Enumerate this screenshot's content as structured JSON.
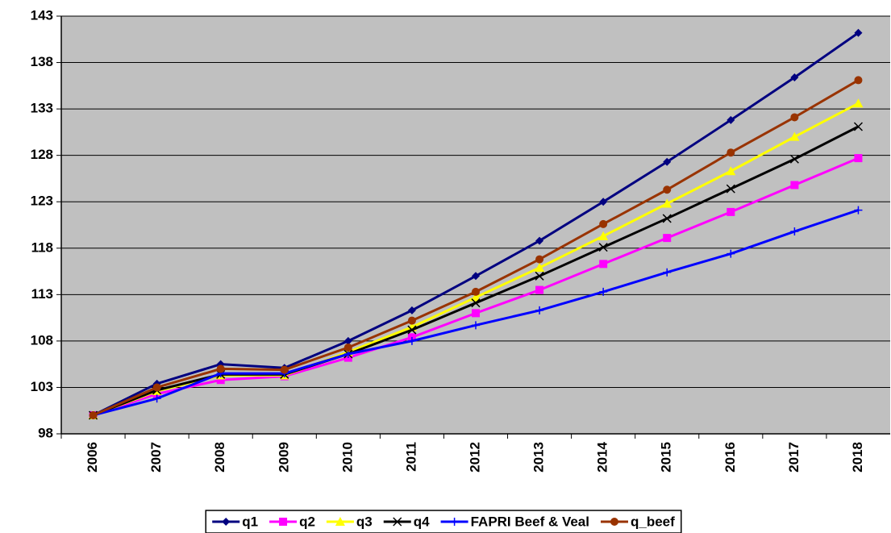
{
  "chart_data": {
    "type": "line",
    "categories": [
      "2006",
      "2007",
      "2008",
      "2009",
      "2010",
      "2011",
      "2012",
      "2013",
      "2014",
      "2015",
      "2016",
      "2017",
      "2018"
    ],
    "series": [
      {
        "name": "q1",
        "color": "#000080",
        "marker": "diamond",
        "values": [
          100,
          103.4,
          105.5,
          105.1,
          108,
          111.3,
          115,
          118.8,
          123,
          127.3,
          131.8,
          136.4,
          141.2
        ]
      },
      {
        "name": "q2",
        "color": "#ff00ff",
        "marker": "square",
        "values": [
          100,
          102.3,
          103.8,
          104.2,
          106.2,
          108.4,
          111,
          113.5,
          116.3,
          119.1,
          121.9,
          124.8,
          127.7
        ]
      },
      {
        "name": "q3",
        "color": "#ffff00",
        "marker": "triangle",
        "values": [
          100,
          102.6,
          104.3,
          104.3,
          106.8,
          109.5,
          112.7,
          115.9,
          119.3,
          122.8,
          126.3,
          130,
          133.6
        ]
      },
      {
        "name": "q4",
        "color": "#000000",
        "marker": "x",
        "values": [
          100,
          102.7,
          104.4,
          104.4,
          106.6,
          109.2,
          112.1,
          115,
          118.1,
          121.2,
          124.4,
          127.6,
          131.1
        ]
      },
      {
        "name": "FAPRI Beef & Veal",
        "color": "#0000ff",
        "marker": "plus",
        "values": [
          100,
          101.8,
          104.5,
          104.5,
          106.6,
          108,
          109.7,
          111.3,
          113.3,
          115.4,
          117.4,
          119.8,
          122.1
        ]
      },
      {
        "name": "q_beef",
        "color": "#993300",
        "marker": "circle",
        "values": [
          100,
          103,
          105,
          104.9,
          107.3,
          110.2,
          113.3,
          116.8,
          120.6,
          124.3,
          128.3,
          132.1,
          136.1
        ]
      }
    ],
    "ylim": [
      98,
      143
    ],
    "yticks": [
      98,
      103,
      108,
      113,
      118,
      123,
      128,
      133,
      138,
      143
    ],
    "grid": true,
    "plot_background": "#c0c0c0",
    "legend": "bottom"
  }
}
